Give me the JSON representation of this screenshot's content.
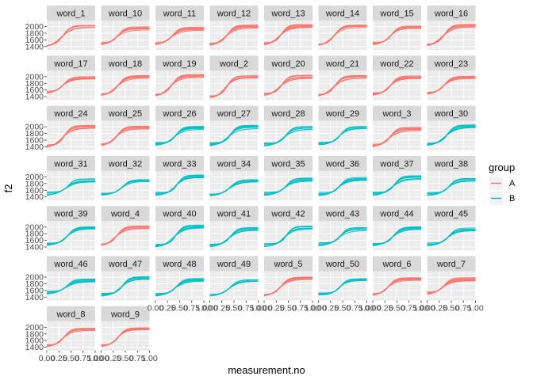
{
  "chart_data": {
    "type": "line",
    "layout": "facet_wrap",
    "xlabel": "measurement.no",
    "ylabel": "f2",
    "xlim": [
      0,
      1
    ],
    "ylim": [
      1300,
      2180
    ],
    "x_ticks": [
      0.0,
      0.25,
      0.5,
      0.75,
      1.0
    ],
    "x_tick_labels": [
      "0.00",
      "0.25",
      "0.50",
      "0.75",
      "1.00"
    ],
    "y_ticks": [
      1400,
      1600,
      1800,
      2000
    ],
    "y_tick_labels": [
      "1400",
      "1600",
      "1800",
      "2000"
    ],
    "grid": true,
    "legend": {
      "title": "group",
      "position": "right",
      "entries": [
        {
          "name": "A",
          "color": "#F8766D"
        },
        {
          "name": "B",
          "color": "#00BFC4"
        }
      ]
    },
    "colors": {
      "A": "#F8766D",
      "B": "#00BFC4"
    },
    "panel_background": "#EBEBEB",
    "strip_background": "#D9D9D9",
    "facets": [
      {
        "label": "word_1",
        "group": "A",
        "start": 1450,
        "end": 2050,
        "midpoint": 0.35
      },
      {
        "label": "word_10",
        "group": "A",
        "start": 1500,
        "end": 1970,
        "midpoint": 0.35
      },
      {
        "label": "word_11",
        "group": "A",
        "start": 1500,
        "end": 1960,
        "midpoint": 0.35
      },
      {
        "label": "word_12",
        "group": "A",
        "start": 1480,
        "end": 2030,
        "midpoint": 0.36
      },
      {
        "label": "word_13",
        "group": "A",
        "start": 1490,
        "end": 2040,
        "midpoint": 0.35
      },
      {
        "label": "word_14",
        "group": "A",
        "start": 1470,
        "end": 2040,
        "midpoint": 0.34
      },
      {
        "label": "word_15",
        "group": "A",
        "start": 1500,
        "end": 1990,
        "midpoint": 0.38
      },
      {
        "label": "word_16",
        "group": "A",
        "start": 1470,
        "end": 2060,
        "midpoint": 0.36
      },
      {
        "label": "word_17",
        "group": "A",
        "start": 1550,
        "end": 1990,
        "midpoint": 0.35
      },
      {
        "label": "word_18",
        "group": "A",
        "start": 1480,
        "end": 2030,
        "midpoint": 0.36
      },
      {
        "label": "word_19",
        "group": "A",
        "start": 1460,
        "end": 2050,
        "midpoint": 0.34
      },
      {
        "label": "word_2",
        "group": "A",
        "start": 1400,
        "end": 2010,
        "midpoint": 0.35
      },
      {
        "label": "word_20",
        "group": "A",
        "start": 1480,
        "end": 2020,
        "midpoint": 0.36
      },
      {
        "label": "word_21",
        "group": "A",
        "start": 1460,
        "end": 2030,
        "midpoint": 0.35
      },
      {
        "label": "word_22",
        "group": "A",
        "start": 1490,
        "end": 2000,
        "midpoint": 0.37
      },
      {
        "label": "word_23",
        "group": "A",
        "start": 1520,
        "end": 2000,
        "midpoint": 0.36
      },
      {
        "label": "word_24",
        "group": "A",
        "start": 1430,
        "end": 2020,
        "midpoint": 0.36
      },
      {
        "label": "word_25",
        "group": "A",
        "start": 1470,
        "end": 2000,
        "midpoint": 0.33
      },
      {
        "label": "word_26",
        "group": "B",
        "start": 1500,
        "end": 1990,
        "midpoint": 0.42
      },
      {
        "label": "word_27",
        "group": "B",
        "start": 1490,
        "end": 2020,
        "midpoint": 0.42
      },
      {
        "label": "word_28",
        "group": "B",
        "start": 1490,
        "end": 1990,
        "midpoint": 0.45
      },
      {
        "label": "word_29",
        "group": "B",
        "start": 1510,
        "end": 1990,
        "midpoint": 0.45
      },
      {
        "label": "word_3",
        "group": "A",
        "start": 1450,
        "end": 1960,
        "midpoint": 0.36
      },
      {
        "label": "word_30",
        "group": "B",
        "start": 1500,
        "end": 2050,
        "midpoint": 0.42
      },
      {
        "label": "word_31",
        "group": "B",
        "start": 1520,
        "end": 1920,
        "midpoint": 0.43
      },
      {
        "label": "word_32",
        "group": "B",
        "start": 1510,
        "end": 1920,
        "midpoint": 0.45
      },
      {
        "label": "word_33",
        "group": "B",
        "start": 1500,
        "end": 2030,
        "midpoint": 0.44
      },
      {
        "label": "word_34",
        "group": "B",
        "start": 1500,
        "end": 1930,
        "midpoint": 0.44
      },
      {
        "label": "word_35",
        "group": "B",
        "start": 1510,
        "end": 1940,
        "midpoint": 0.45
      },
      {
        "label": "word_36",
        "group": "B",
        "start": 1500,
        "end": 1960,
        "midpoint": 0.44
      },
      {
        "label": "word_37",
        "group": "B",
        "start": 1510,
        "end": 2010,
        "midpoint": 0.44
      },
      {
        "label": "word_38",
        "group": "B",
        "start": 1500,
        "end": 1930,
        "midpoint": 0.45
      },
      {
        "label": "word_39",
        "group": "B",
        "start": 1510,
        "end": 2000,
        "midpoint": 0.44
      },
      {
        "label": "word_4",
        "group": "A",
        "start": 1480,
        "end": 2020,
        "midpoint": 0.33
      },
      {
        "label": "word_40",
        "group": "B",
        "start": 1460,
        "end": 2040,
        "midpoint": 0.42
      },
      {
        "label": "word_41",
        "group": "B",
        "start": 1470,
        "end": 1970,
        "midpoint": 0.43
      },
      {
        "label": "word_42",
        "group": "B",
        "start": 1470,
        "end": 2000,
        "midpoint": 0.45
      },
      {
        "label": "word_43",
        "group": "B",
        "start": 1500,
        "end": 1960,
        "midpoint": 0.45
      },
      {
        "label": "word_44",
        "group": "B",
        "start": 1500,
        "end": 2000,
        "midpoint": 0.44
      },
      {
        "label": "word_45",
        "group": "B",
        "start": 1500,
        "end": 1950,
        "midpoint": 0.45
      },
      {
        "label": "word_46",
        "group": "B",
        "start": 1560,
        "end": 1930,
        "midpoint": 0.42
      },
      {
        "label": "word_47",
        "group": "B",
        "start": 1490,
        "end": 1990,
        "midpoint": 0.44
      },
      {
        "label": "word_48",
        "group": "B",
        "start": 1500,
        "end": 1950,
        "midpoint": 0.44
      },
      {
        "label": "word_49",
        "group": "B",
        "start": 1500,
        "end": 1940,
        "midpoint": 0.44
      },
      {
        "label": "word_5",
        "group": "A",
        "start": 1480,
        "end": 2000,
        "midpoint": 0.36
      },
      {
        "label": "word_50",
        "group": "B",
        "start": 1500,
        "end": 1930,
        "midpoint": 0.45
      },
      {
        "label": "word_6",
        "group": "A",
        "start": 1490,
        "end": 1970,
        "midpoint": 0.33
      },
      {
        "label": "word_7",
        "group": "A",
        "start": 1530,
        "end": 1960,
        "midpoint": 0.35
      },
      {
        "label": "word_8",
        "group": "A",
        "start": 1460,
        "end": 1960,
        "midpoint": 0.36
      },
      {
        "label": "word_9",
        "group": "A",
        "start": 1460,
        "end": 1970,
        "midpoint": 0.36
      }
    ]
  }
}
